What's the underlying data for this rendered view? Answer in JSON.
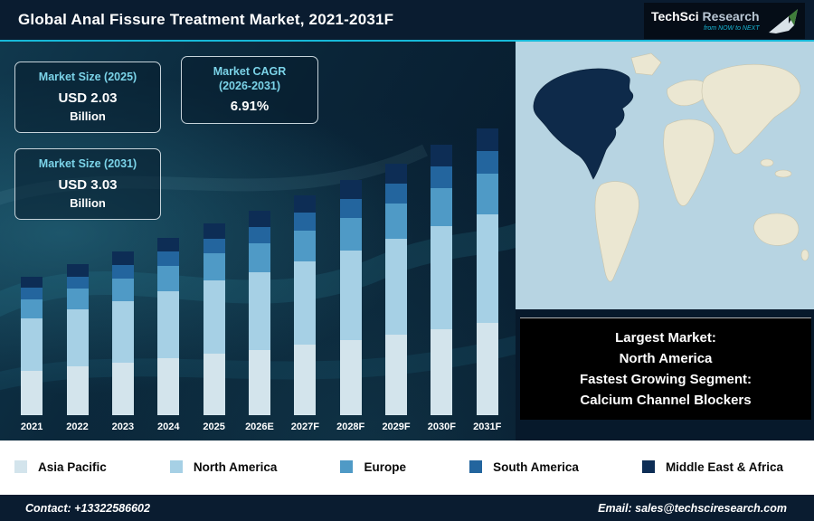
{
  "header": {
    "title": "Global Anal Fissure Treatment Market, 2021-2031F",
    "accent_color": "#17b9d8"
  },
  "logo": {
    "brand_primary": "TechSci",
    "brand_secondary": " Research",
    "tagline": "from NOW to NEXT"
  },
  "info_boxes": [
    {
      "title": "Market Size (2025)",
      "value": "USD 2.03",
      "unit": "Billion"
    },
    {
      "title": "Market CAGR\n(2026-2031)",
      "value": "6.91%",
      "unit": ""
    },
    {
      "title": "Market Size (2031)",
      "value": "USD 3.03",
      "unit": "Billion"
    }
  ],
  "chart_data": {
    "type": "bar",
    "subtype": "stacked",
    "title": "Global Anal Fissure Treatment Market, 2021-2031F",
    "unit": "USD Billion",
    "grid": false,
    "legend_position": "bottom",
    "ylim": [
      0,
      3.2
    ],
    "categories": [
      "2021",
      "2022",
      "2023",
      "2024",
      "2025",
      "2026E",
      "2027F",
      "2028F",
      "2029F",
      "2030F",
      "2031F"
    ],
    "series": [
      {
        "name": "Asia Pacific",
        "color": "#d3e4ec",
        "values": [
          0.47,
          0.51,
          0.55,
          0.6,
          0.65,
          0.69,
          0.74,
          0.79,
          0.85,
          0.91,
          0.97
        ]
      },
      {
        "name": "North America",
        "color": "#a6d0e5",
        "values": [
          0.55,
          0.6,
          0.65,
          0.71,
          0.77,
          0.82,
          0.88,
          0.94,
          1.01,
          1.08,
          1.15
        ]
      },
      {
        "name": "Europe",
        "color": "#4f9ac6",
        "values": [
          0.2,
          0.22,
          0.24,
          0.26,
          0.28,
          0.3,
          0.32,
          0.35,
          0.37,
          0.4,
          0.42
        ]
      },
      {
        "name": "South America",
        "color": "#23659e",
        "values": [
          0.12,
          0.13,
          0.14,
          0.15,
          0.16,
          0.17,
          0.19,
          0.2,
          0.21,
          0.23,
          0.24
        ]
      },
      {
        "name": "Middle East & Africa",
        "color": "#0d2d55",
        "values": [
          0.12,
          0.13,
          0.14,
          0.15,
          0.16,
          0.17,
          0.19,
          0.2,
          0.21,
          0.23,
          0.24
        ]
      }
    ],
    "totals_estimated": [
      1.46,
      1.59,
      1.72,
      1.87,
      2.03,
      2.17,
      2.32,
      2.48,
      2.65,
      2.83,
      3.03
    ],
    "annotations": {
      "market_size_2025_usd_billion": 2.03,
      "market_size_2031_usd_billion": 3.03,
      "cagr_2026_2031_percent": 6.91
    }
  },
  "map": {
    "highlight_region": "North America",
    "ocean_color": "#b7d4e2",
    "land_color": "#ebe7d2",
    "highlight_color": "#0e2a4a"
  },
  "callout": {
    "lines": [
      "Largest Market:",
      "North America",
      "Fastest Growing Segment:",
      "Calcium Channel Blockers"
    ]
  },
  "footer": {
    "contact": "Contact: +13322586602",
    "email": "Email: sales@techsciresearch.com"
  }
}
